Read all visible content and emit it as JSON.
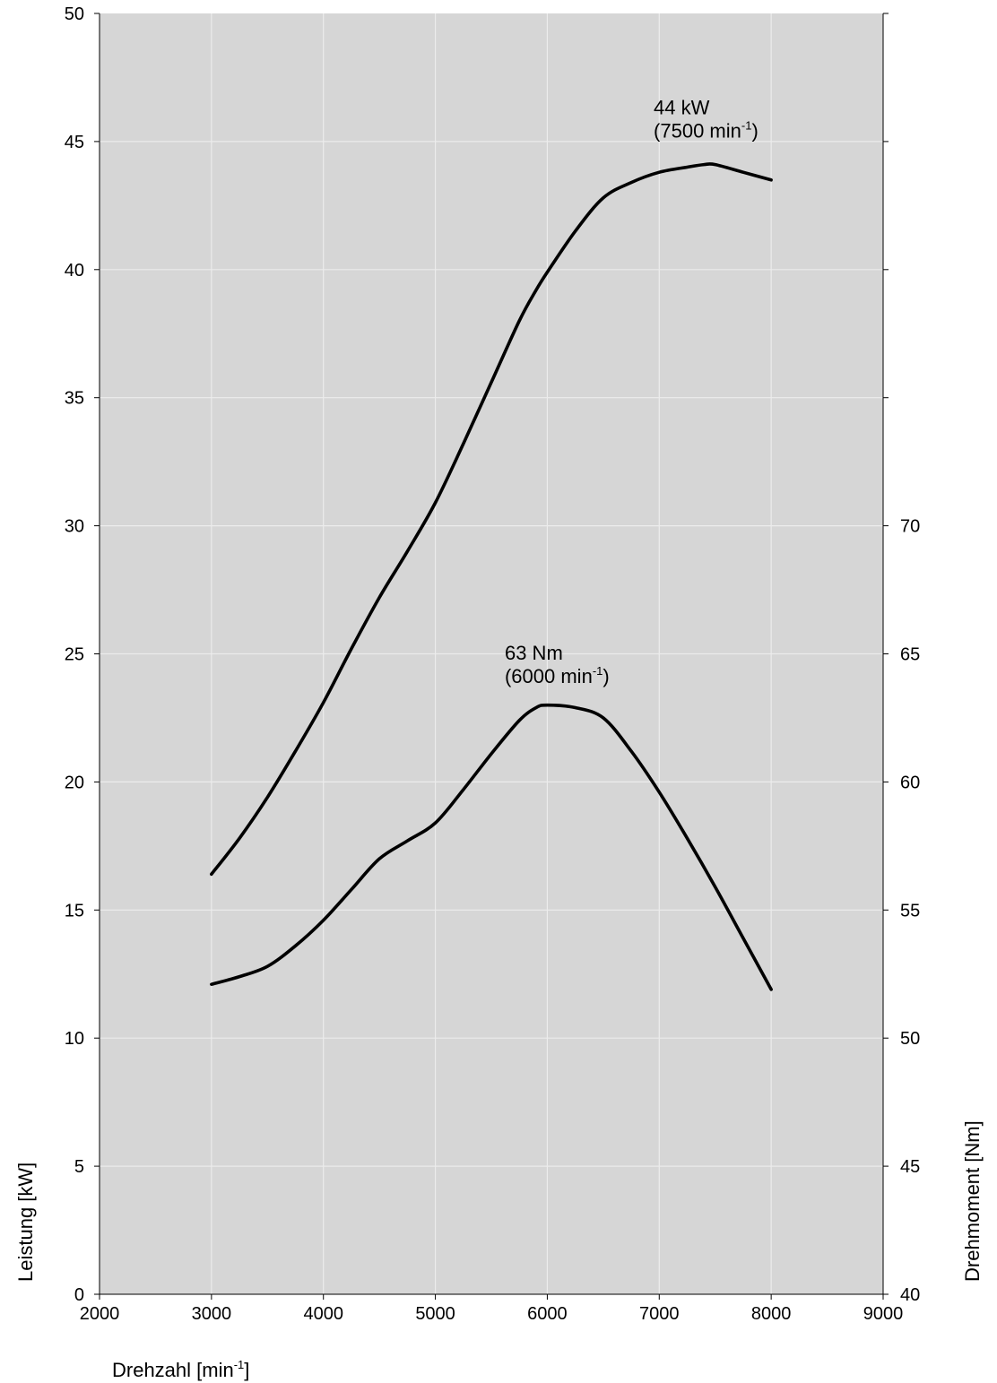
{
  "chart_data": {
    "type": "line",
    "grid": true,
    "colors": {
      "plot_background": "#d6d6d6",
      "grid": "#ececec",
      "line": "#000000"
    },
    "x_axis": {
      "label": "Drehzahl [min",
      "label_sup": "-1",
      "label_end": "]",
      "range": [
        2000,
        9000
      ],
      "ticks": [
        "2000",
        "3000",
        "4000",
        "5000",
        "6000",
        "7000",
        "8000",
        "9000"
      ]
    },
    "y_axis_left": {
      "label": "Leistung [kW]",
      "range": [
        0,
        50
      ],
      "ticks": [
        "0",
        "5",
        "10",
        "15",
        "20",
        "25",
        "30",
        "35",
        "40",
        "45",
        "50"
      ]
    },
    "y_axis_right": {
      "label": "Drehmoment [Nm]",
      "range": [
        40,
        90
      ],
      "ticks": [
        "40",
        "45",
        "50",
        "55",
        "60",
        "65",
        "70"
      ],
      "tick_marks_only": [
        75,
        80,
        85,
        90
      ]
    },
    "series": [
      {
        "axis": "left",
        "x": [
          3000,
          3250,
          3500,
          3750,
          4000,
          4250,
          4500,
          4750,
          5000,
          5250,
          5500,
          5750,
          5900,
          6000,
          6250,
          6500,
          6750,
          7000,
          7250,
          7400,
          7500,
          7750,
          8000
        ],
        "y": [
          16.4,
          17.8,
          19.4,
          21.2,
          23.1,
          25.2,
          27.2,
          29.0,
          30.9,
          33.2,
          35.6,
          38.0,
          39.2,
          39.9,
          41.5,
          42.8,
          43.4,
          43.8,
          44.0,
          44.1,
          44.1,
          43.8,
          43.5
        ]
      },
      {
        "axis": "right",
        "x": [
          3000,
          3250,
          3500,
          3750,
          4000,
          4250,
          4500,
          4750,
          5000,
          5250,
          5500,
          5750,
          5900,
          6000,
          6250,
          6500,
          6750,
          7000,
          7250,
          7500,
          7750,
          8000
        ],
        "y": [
          52.1,
          52.4,
          52.8,
          53.6,
          54.6,
          55.8,
          57.0,
          57.7,
          58.4,
          59.7,
          61.1,
          62.4,
          62.9,
          63.0,
          62.9,
          62.5,
          61.2,
          59.6,
          57.8,
          55.9,
          53.9,
          51.9
        ]
      }
    ],
    "annotations": [
      {
        "line1": "44 kW",
        "line2": "(7500 min",
        "sup": "-1",
        "line2_end": ")",
        "x": 6950,
        "y": 45.3,
        "axis": "left"
      },
      {
        "line1": "63 Nm",
        "line2": "(6000 min",
        "sup": "-1",
        "line2_end": ")",
        "x": 5620,
        "y": 64.0,
        "axis": "right"
      }
    ]
  }
}
